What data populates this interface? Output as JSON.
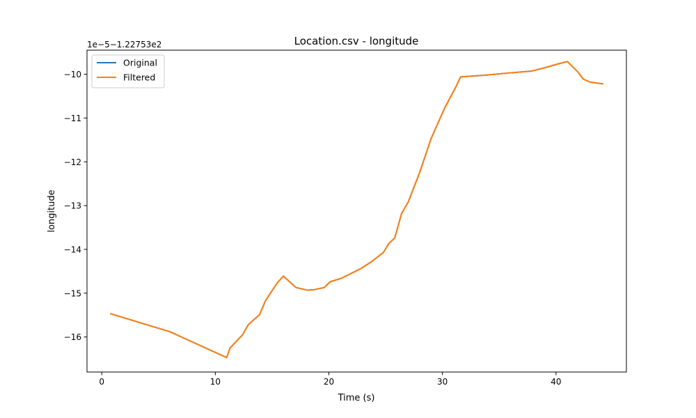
{
  "chart_data": {
    "type": "line",
    "title": "Location.csv - longitude",
    "xlabel": "Time (s)",
    "ylabel": "longitude",
    "offset_label": "1e−5−1.22753e2",
    "xlim": [
      -1.3,
      46.2
    ],
    "ylim": [
      -16.8,
      -9.45
    ],
    "xticks": [
      0,
      10,
      20,
      30,
      40
    ],
    "yticks": [
      -16,
      -15,
      -14,
      -13,
      -12,
      -11,
      -10
    ],
    "xtick_labels": [
      "0",
      "10",
      "20",
      "30",
      "40"
    ],
    "ytick_labels": [
      "−16",
      "−15",
      "−14",
      "−13",
      "−12",
      "−11",
      "−10"
    ],
    "grid": false,
    "legend_position": "top-left",
    "series": [
      {
        "name": "Original",
        "color": "#1f77b4",
        "x": [
          0.8,
          6.0,
          11.0,
          11.3,
          12.4,
          12.9,
          13.9,
          14.4,
          14.9,
          15.5,
          16.0,
          17.1,
          18.1,
          18.7,
          19.6,
          20.1,
          21.1,
          22.8,
          23.7,
          24.8,
          25.3,
          25.8,
          26.4,
          27.0,
          28.0,
          29.0,
          30.2,
          31.2,
          31.6,
          33.8,
          35.9,
          37.8,
          38.9,
          40.1,
          41.0,
          41.9,
          42.4,
          43.0,
          44.1
        ],
        "y": [
          -15.47,
          -15.88,
          -16.47,
          -16.25,
          -15.95,
          -15.72,
          -15.49,
          -15.18,
          -14.98,
          -14.75,
          -14.61,
          -14.87,
          -14.93,
          -14.92,
          -14.87,
          -14.74,
          -14.66,
          -14.44,
          -14.29,
          -14.07,
          -13.86,
          -13.74,
          -13.18,
          -12.91,
          -12.24,
          -11.47,
          -10.77,
          -10.28,
          -10.06,
          -10.02,
          -9.97,
          -9.93,
          -9.86,
          -9.77,
          -9.71,
          -9.94,
          -10.11,
          -10.18,
          -10.22
        ]
      },
      {
        "name": "Filtered",
        "color": "#ff7f0e",
        "x": [
          0.8,
          6.0,
          11.0,
          11.3,
          12.4,
          12.9,
          13.9,
          14.4,
          14.9,
          15.5,
          16.0,
          17.1,
          18.1,
          18.7,
          19.6,
          20.1,
          21.1,
          22.8,
          23.7,
          24.8,
          25.3,
          25.8,
          26.4,
          27.0,
          28.0,
          29.0,
          30.2,
          31.2,
          31.6,
          33.8,
          35.9,
          37.8,
          38.9,
          40.1,
          41.0,
          41.9,
          42.4,
          43.0,
          44.1
        ],
        "y": [
          -15.47,
          -15.88,
          -16.47,
          -16.25,
          -15.95,
          -15.72,
          -15.49,
          -15.18,
          -14.98,
          -14.75,
          -14.61,
          -14.87,
          -14.93,
          -14.92,
          -14.87,
          -14.74,
          -14.66,
          -14.44,
          -14.29,
          -14.07,
          -13.86,
          -13.74,
          -13.18,
          -12.91,
          -12.24,
          -11.47,
          -10.77,
          -10.28,
          -10.06,
          -10.02,
          -9.97,
          -9.93,
          -9.86,
          -9.77,
          -9.71,
          -9.94,
          -10.11,
          -10.18,
          -10.22
        ]
      }
    ]
  }
}
